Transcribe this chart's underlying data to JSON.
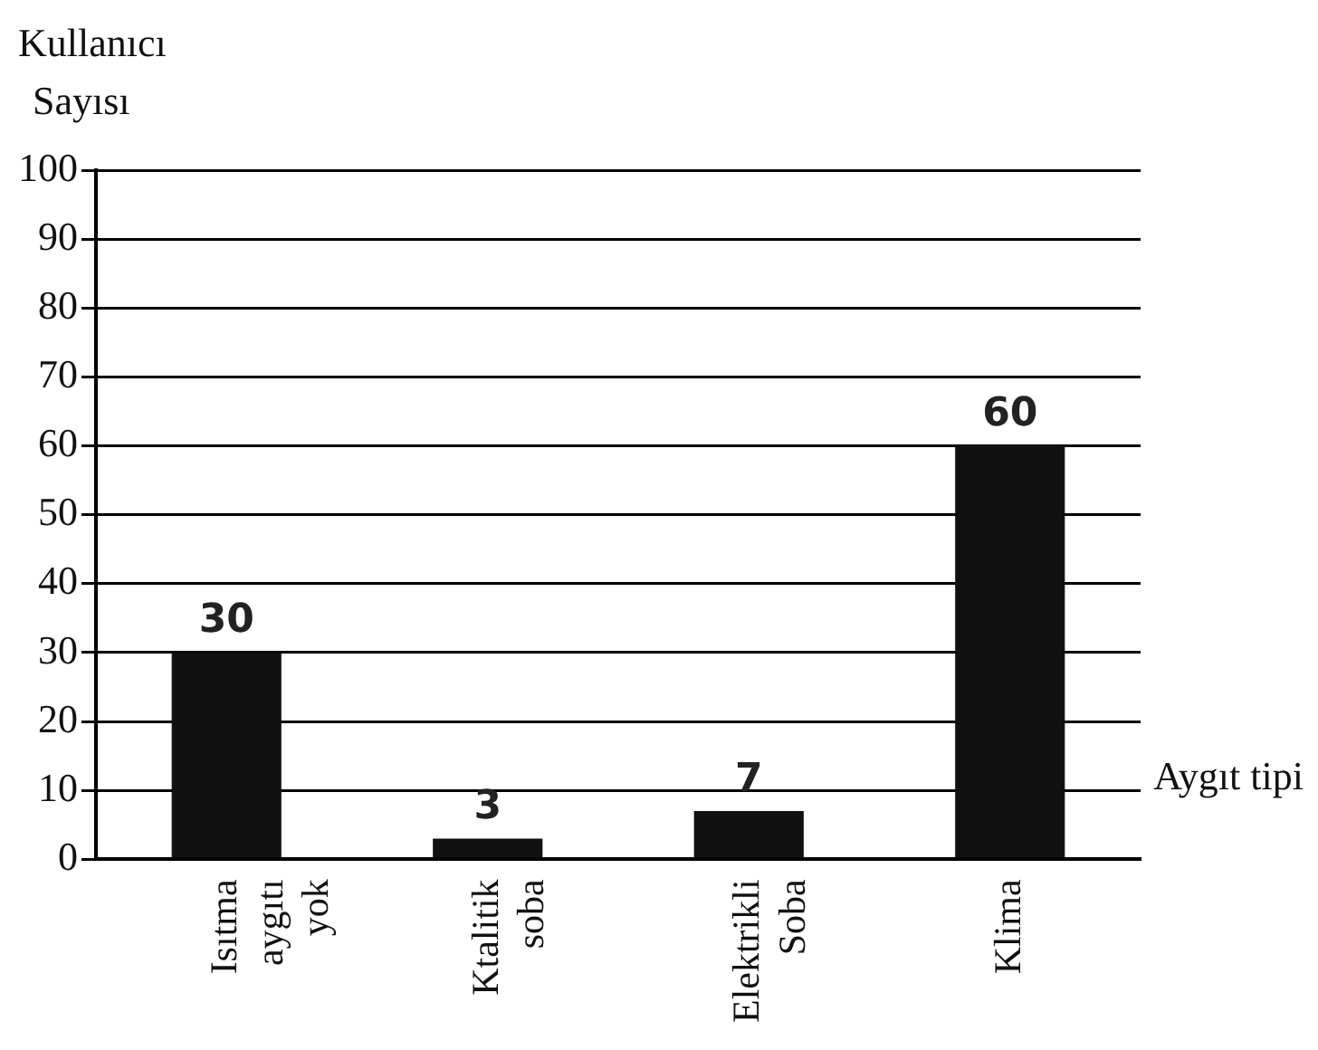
{
  "chart_data": {
    "type": "bar",
    "xlabel": "Aygıt tipi",
    "ylabel": "Kullanıcı Sayısı",
    "categories": [
      "Isıtma aygıtı yok",
      "Ktalitik soba",
      "Elektrikli Soba",
      "Klima"
    ],
    "values": [
      30,
      3,
      7,
      60
    ],
    "color": "#111111",
    "ylim": [
      0,
      100
    ],
    "yticks": [
      0,
      10,
      20,
      30,
      40,
      50,
      60,
      70,
      80,
      90,
      100
    ],
    "grid": "y",
    "data_labels": true
  }
}
